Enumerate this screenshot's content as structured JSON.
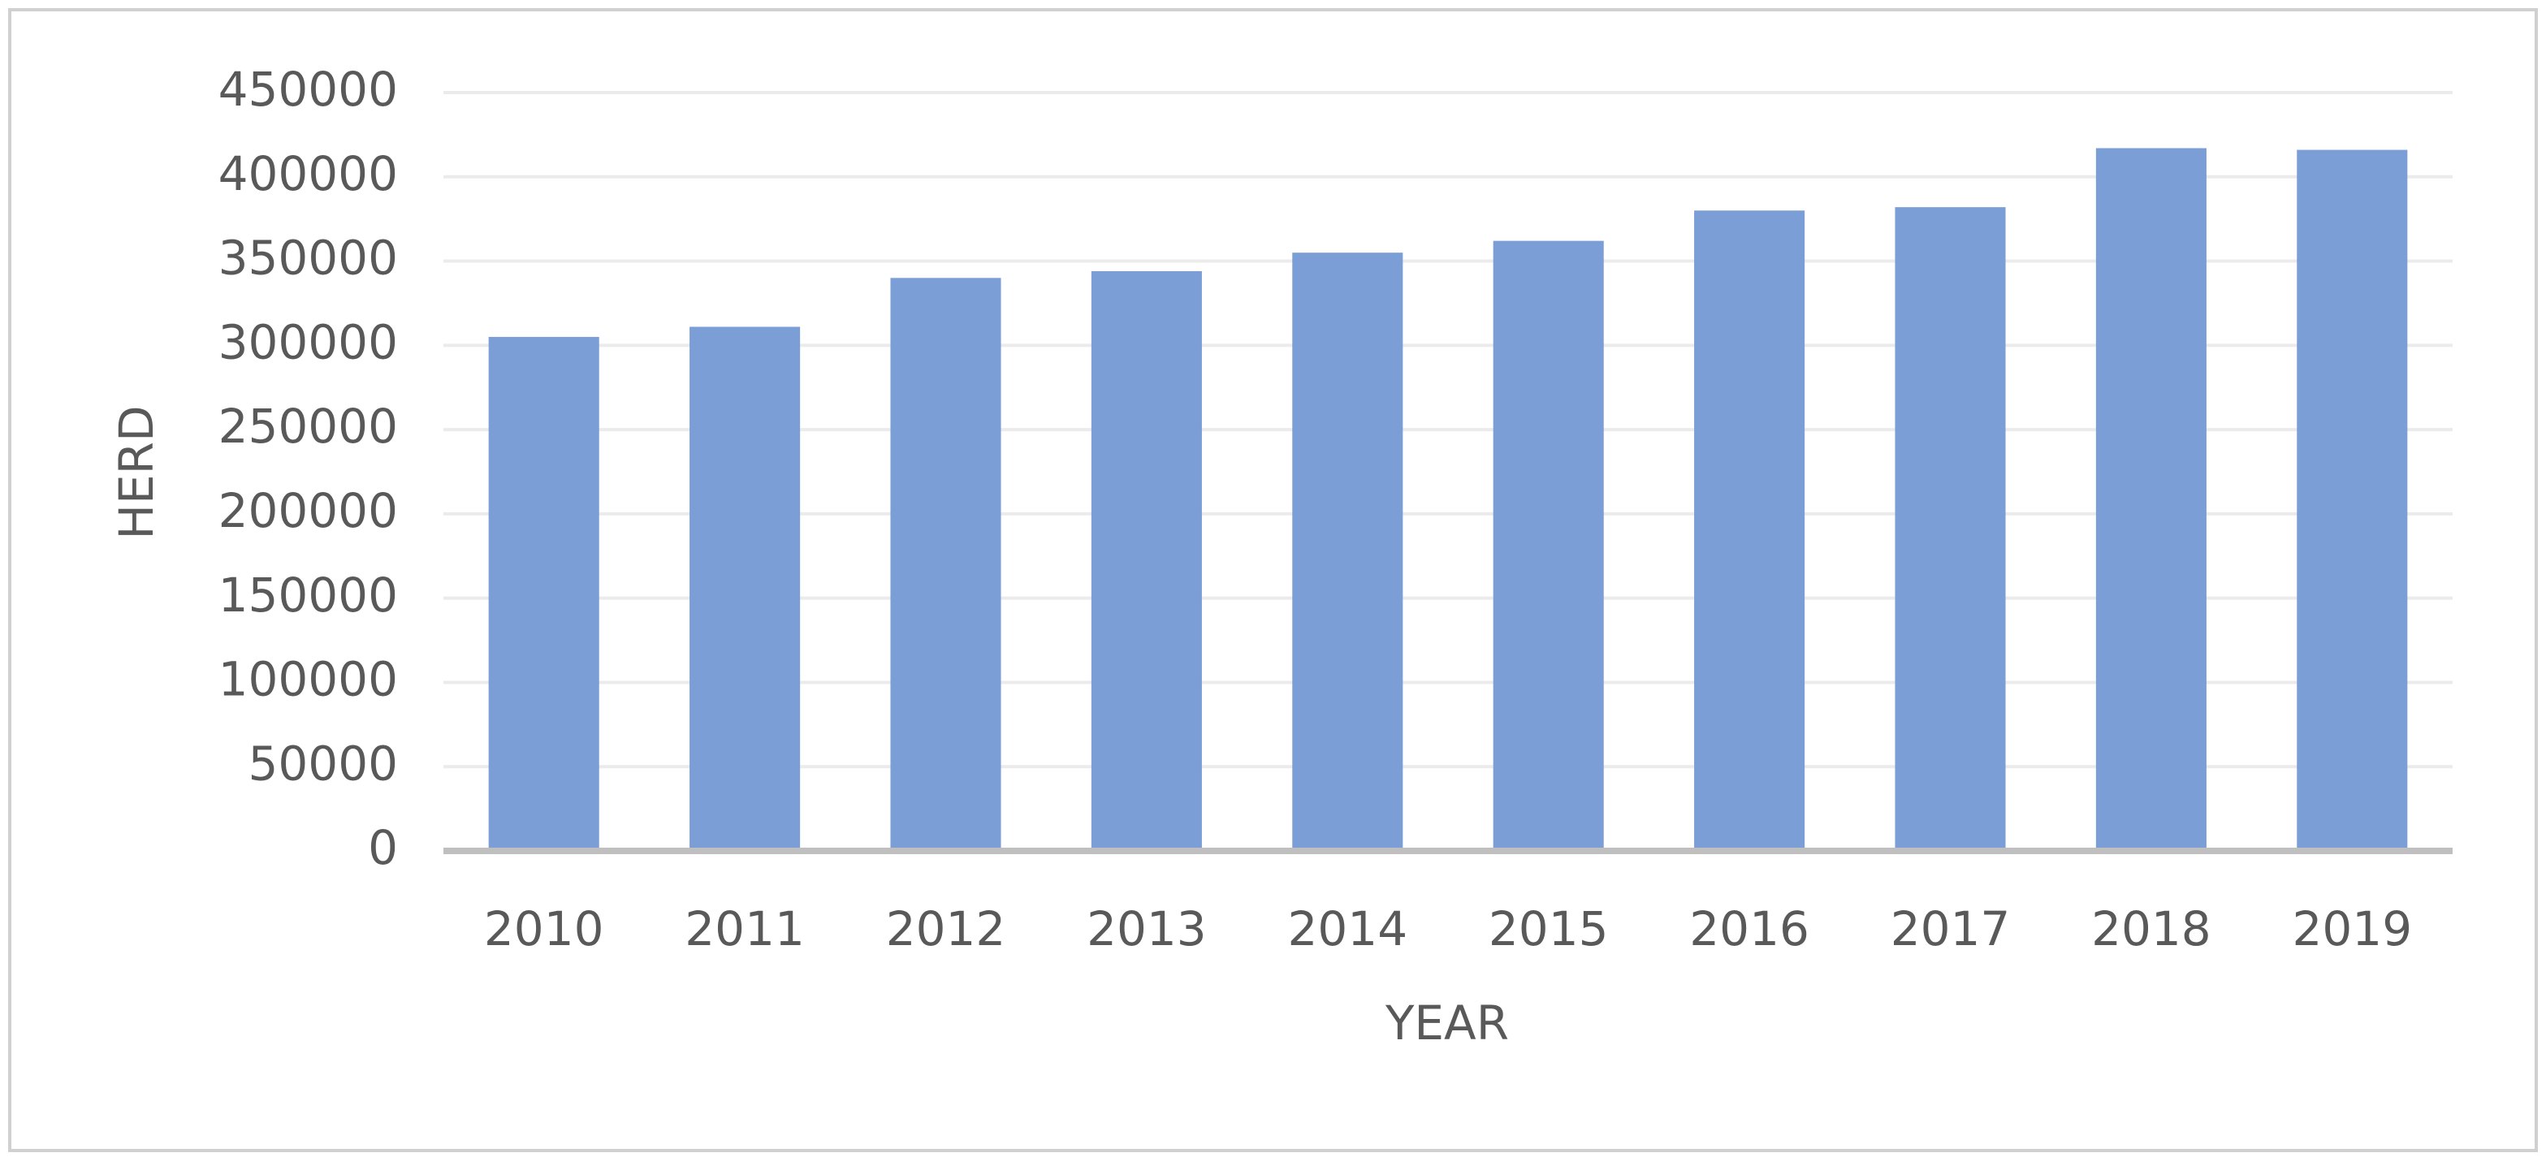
{
  "chart_data": {
    "type": "bar",
    "x_label": "YEAR",
    "y_label": "HERD",
    "categories": [
      "2010",
      "2011",
      "2012",
      "2013",
      "2014",
      "2015",
      "2016",
      "2017",
      "2018",
      "2019"
    ],
    "values": [
      305000,
      311000,
      340000,
      344000,
      355000,
      362000,
      380000,
      382000,
      417000,
      416000
    ],
    "color": "#7b9ed6",
    "ylim": [
      0,
      450000
    ],
    "yticks": [
      0,
      50000,
      100000,
      150000,
      200000,
      250000,
      300000,
      350000,
      400000,
      450000
    ],
    "grid": true
  }
}
